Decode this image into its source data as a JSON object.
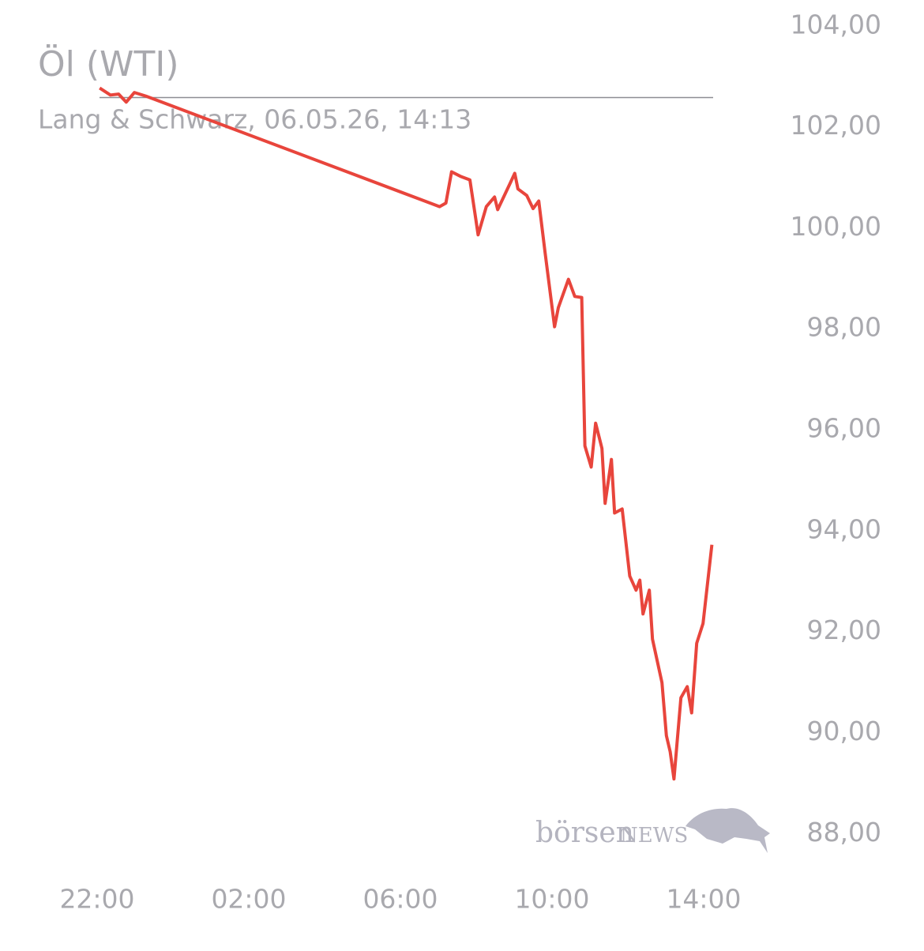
{
  "chart_data": {
    "type": "line",
    "title": "Öl (WTI)",
    "subtitle": "Lang & Schwarz, 06.05.26, 14:13",
    "logo": {
      "text1": "börsen",
      "text2": "NEWS"
    },
    "reference": 102.58,
    "xlim": [
      "22:00",
      "14:40"
    ],
    "xticks": [
      "22:00",
      "02:00",
      "06:00",
      "10:00",
      "14:00"
    ],
    "ylim": [
      87.3,
      104.2
    ],
    "yticks": [
      {
        "value": 104,
        "label": "104,00"
      },
      {
        "value": 102,
        "label": "102,00"
      },
      {
        "value": 100,
        "label": "100,00"
      },
      {
        "value": 98,
        "label": "98,00"
      },
      {
        "value": 96,
        "label": "96,00"
      },
      {
        "value": 94,
        "label": "94,00"
      },
      {
        "value": 92,
        "label": "92,00"
      },
      {
        "value": 90,
        "label": "90,00"
      },
      {
        "value": 88,
        "label": "88,00"
      }
    ],
    "x": [
      "22:04",
      "22:21",
      "22:34",
      "22:46",
      "22:59",
      "23:17",
      "07:02",
      "07:12",
      "07:21",
      "07:35",
      "07:50",
      "07:59",
      "08:03",
      "08:16",
      "08:29",
      "08:34",
      "08:54",
      "09:01",
      "09:06",
      "09:20",
      "09:30",
      "09:39",
      "09:49",
      "10:04",
      "10:10",
      "10:26",
      "10:36",
      "10:47",
      "10:52",
      "11:02",
      "11:09",
      "11:19",
      "11:24",
      "11:34",
      "11:39",
      "11:51",
      "12:03",
      "12:13",
      "12:19",
      "12:24",
      "12:34",
      "12:39",
      "12:54",
      "13:01",
      "13:07",
      "13:13",
      "13:24",
      "13:34",
      "13:41",
      "13:49",
      "13:59",
      "14:13"
    ],
    "series": [
      {
        "color": "#e8453c",
        "values": [
          102.77,
          102.63,
          102.65,
          102.49,
          102.68,
          102.61,
          100.42,
          100.49,
          101.11,
          101.02,
          100.95,
          100.2,
          99.86,
          100.42,
          100.61,
          100.36,
          100.89,
          101.08,
          100.77,
          100.64,
          100.38,
          100.53,
          99.51,
          98.04,
          98.42,
          98.98,
          98.64,
          98.62,
          95.68,
          95.26,
          96.13,
          95.63,
          94.54,
          95.41,
          94.35,
          94.43,
          93.1,
          92.82,
          93.02,
          92.35,
          92.82,
          91.85,
          90.99,
          89.94,
          89.62,
          89.08,
          90.69,
          90.91,
          90.39,
          91.77,
          92.16,
          93.72
        ]
      }
    ]
  }
}
